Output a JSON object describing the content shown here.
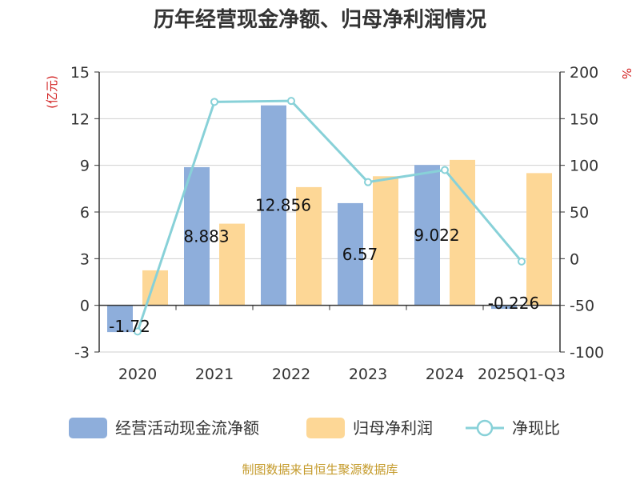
{
  "chart_data": {
    "type": "bar",
    "title": "历年经营现金净额、归母净利润情况",
    "categories": [
      "2020",
      "2021",
      "2022",
      "2023",
      "2024",
      "2025Q1-Q3"
    ],
    "left_axis": {
      "unit_label": "(亿元)",
      "range": [
        -3,
        15
      ],
      "ticks": [
        -3,
        0,
        3,
        6,
        9,
        12,
        15
      ]
    },
    "right_axis": {
      "unit_label": "%",
      "range": [
        -100,
        200
      ],
      "ticks": [
        -100,
        -50,
        0,
        50,
        100,
        150,
        200
      ]
    },
    "grid": true,
    "legend_position": "bottom",
    "series": [
      {
        "name": "经营活动现金流净额",
        "kind": "bar",
        "axis": "left",
        "color": "#8eaedb",
        "values": [
          -1.72,
          8.883,
          12.856,
          6.57,
          9.022,
          -0.226
        ],
        "labels": [
          "-1.72",
          "8.883",
          "12.856",
          "6.57",
          "9.022",
          "-0.226"
        ]
      },
      {
        "name": "归母净利润",
        "kind": "bar",
        "axis": "left",
        "color": "#fdd796",
        "values": [
          2.25,
          5.25,
          7.6,
          8.3,
          9.35,
          8.5
        ]
      },
      {
        "name": "净现比",
        "kind": "line",
        "axis": "right",
        "color": "#88d1d8",
        "values": [
          -78,
          168,
          169,
          82,
          95,
          -3
        ]
      }
    ]
  },
  "source": "制图数据来自恒生聚源数据库"
}
